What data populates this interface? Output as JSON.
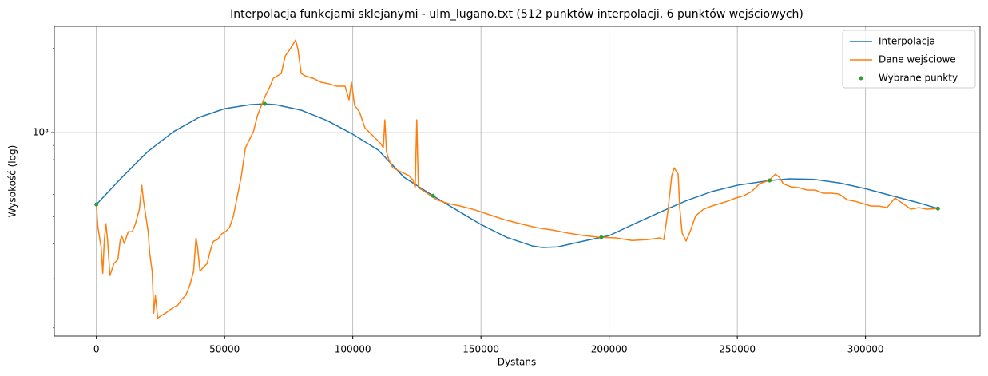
{
  "chart_data": {
    "type": "line",
    "title": "Interpolacja funkcjami sklejanymi - ulm_lugano.txt (512 punktów interpolacji, 6 punktów wejściowych)",
    "xlabel": "Dystans",
    "ylabel": "Wysokość (log)",
    "xlim": [
      -16413,
      344663
    ],
    "ylim": [
      187,
      2400
    ],
    "log_y": true,
    "grid": true,
    "legend": "upper right",
    "xticks": [
      0,
      50000,
      100000,
      150000,
      200000,
      250000,
      300000
    ],
    "yticks": [
      {
        "value": 1000,
        "label": "10³"
      }
    ],
    "yminorticks": [
      200,
      300,
      400,
      500,
      600,
      700,
      800,
      900,
      2000
    ],
    "series": [
      {
        "name": "Interpolacja",
        "color": "#1f77b4",
        "style": "line",
        "x": [
          0,
          10000,
          20000,
          30000,
          40000,
          50000,
          60000,
          65650,
          70000,
          80000,
          90000,
          100000,
          110000,
          120000,
          131300,
          140000,
          150000,
          160000,
          170000,
          174000,
          180000,
          190000,
          196950,
          200000,
          210000,
          220000,
          230000,
          240000,
          250000,
          262600,
          270000,
          280000,
          290000,
          300000,
          310000,
          320000,
          328250
        ],
        "values": [
          553,
          692,
          854,
          1007,
          1133,
          1218,
          1259,
          1267,
          1259,
          1202,
          1104,
          987,
          865,
          692,
          594,
          532,
          469,
          422,
          393,
          388,
          390,
          409,
          422,
          428,
          472,
          520,
          570,
          615,
          648,
          674,
          683,
          680,
          660,
          630,
          595,
          563,
          535
        ]
      },
      {
        "name": "Dane wejściowe",
        "color": "#ff7f0e",
        "style": "line",
        "x": [
          0,
          622,
          1865,
          2487,
          3109,
          3730,
          4352,
          5284,
          6839,
          8393,
          9326,
          9947,
          10880,
          12434,
          13988,
          15232,
          16786,
          17718,
          18340,
          19273,
          20205,
          20827,
          21760,
          22381,
          23003,
          23935,
          25490,
          27044,
          28598,
          30153,
          31707,
          33261,
          34816,
          36370,
          37924,
          38856,
          39478,
          40411,
          41654,
          43208,
          44763,
          45695,
          47249,
          48804,
          50358,
          51912,
          53466,
          55021,
          56575,
          58129,
          59684,
          61238,
          62792,
          64346,
          65901,
          67455,
          69009,
          70563,
          72118,
          73672,
          75226,
          76780,
          77713,
          78645,
          79888,
          81443,
          84551,
          87660,
          90768,
          93877,
          96985,
          98540,
          99472,
          100715,
          102580,
          104757,
          107865,
          110974,
          111906,
          112528,
          113150,
          114082,
          115636,
          118745,
          121853,
          123408,
          124340,
          124962,
          125584,
          128070,
          132733,
          137396,
          142058,
          146721,
          149830,
          154492,
          159155,
          165372,
          171589,
          177806,
          184023,
          190240,
          196457,
          202674,
          208891,
          215108,
          219771,
          221325,
          222879,
          224434,
          225366,
          226920,
          227542,
          228475,
          230029,
          231583,
          233759,
          236868,
          239976,
          243085,
          246193,
          249301,
          252410,
          255519,
          258627,
          262357,
          264844,
          266398,
          267952,
          271061,
          274169,
          277278,
          280386,
          283495,
          286603,
          289712,
          292820,
          295929,
          299037,
          302146,
          305254,
          308363,
          311471,
          314580,
          317688,
          320797,
          323905,
          328250
        ],
        "values": [
          553,
          457,
          388,
          314,
          414,
          472,
          414,
          308,
          340,
          351,
          414,
          425,
          401,
          442,
          442,
          472,
          532,
          648,
          575,
          504,
          442,
          368,
          319,
          226,
          261,
          217,
          222,
          226,
          232,
          237,
          241,
          253,
          261,
          283,
          319,
          420,
          388,
          319,
          329,
          340,
          388,
          409,
          414,
          434,
          442,
          457,
          504,
          594,
          702,
          882,
          943,
          1007,
          1148,
          1251,
          1353,
          1445,
          1564,
          1595,
          1627,
          1881,
          1970,
          2076,
          2145,
          1983,
          1627,
          1595,
          1564,
          1514,
          1494,
          1465,
          1465,
          1310,
          1514,
          1251,
          1187,
          1040,
          974,
          912,
          882,
          1111,
          854,
          800,
          748,
          724,
          702,
          678,
          635,
          1111,
          635,
          615,
          575,
          557,
          546,
          532,
          521,
          504,
          488,
          472,
          457,
          448,
          437,
          428,
          422,
          420,
          411,
          414,
          420,
          414,
          521,
          702,
          748,
          710,
          539,
          437,
          409,
          442,
          504,
          532,
          546,
          557,
          568,
          583,
          594,
          615,
          656,
          674,
          710,
          692,
          656,
          639,
          635,
          623,
          623,
          607,
          607,
          603,
          575,
          568,
          557,
          546,
          546,
          539,
          583,
          557,
          532,
          539,
          532,
          535
        ]
      },
      {
        "name": "Wybrane punkty",
        "color": "#2ca02c",
        "style": "scatter",
        "x": [
          0,
          65650,
          131300,
          196950,
          262600,
          328250
        ],
        "values": [
          553,
          1267,
          594,
          422,
          674,
          535
        ]
      }
    ]
  }
}
